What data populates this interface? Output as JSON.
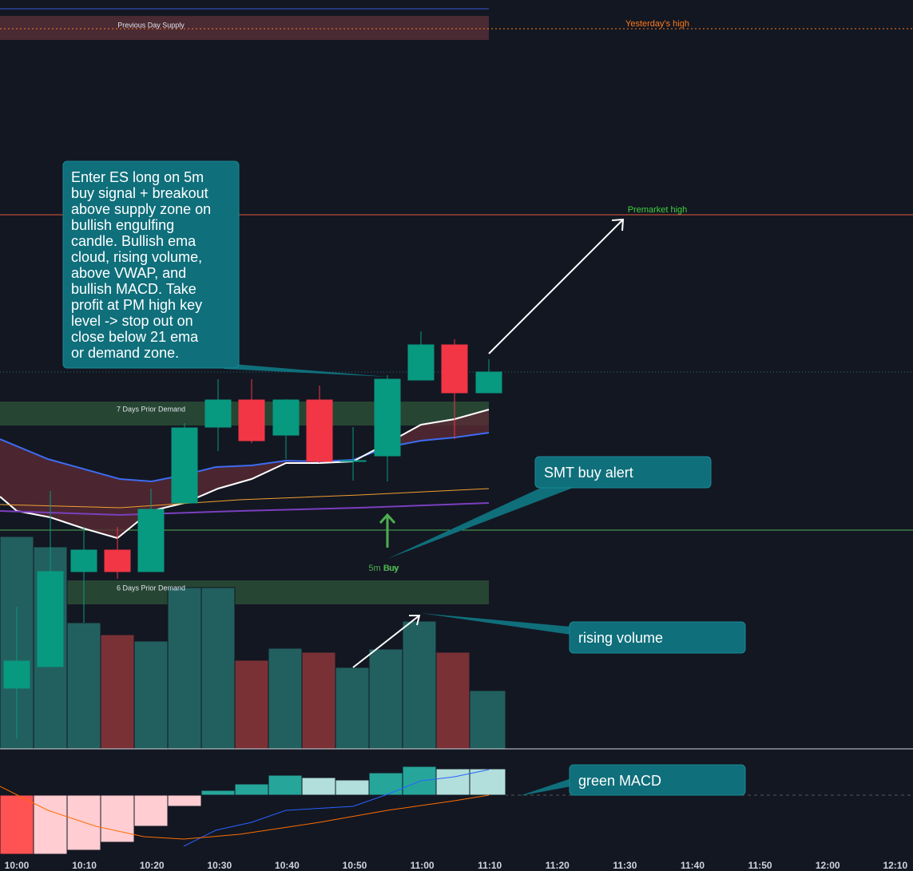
{
  "chart": {
    "zones": [
      "Previous Day Supply",
      "7 Days Prior Demand",
      "6 Days Prior Demand"
    ],
    "levels": [
      "Yesterday's high",
      "Premarket high"
    ],
    "signals": [
      "5m Buy",
      "Buy"
    ],
    "notes": [
      [
        "Enter ES long on 5m",
        "buy signal + breakout",
        "above supply zone on",
        "bullish engulfing",
        "candle. Bullish ema",
        "cloud, rising volume,",
        "above VWAP, and",
        "bullish MACD. Take",
        "profit at PM high key",
        "level -> stop out on",
        "close below 21 ema",
        "or demand zone."
      ],
      "SMT buy alert",
      "rising volume",
      "green MACD"
    ],
    "times": [
      "10:00",
      "10:10",
      "10:20",
      "10:30",
      "10:40",
      "10:50",
      "11:00",
      "11:10",
      "11:20",
      "11:30",
      "11:40",
      "11:50",
      "12:00",
      "12:10"
    ]
  }
}
